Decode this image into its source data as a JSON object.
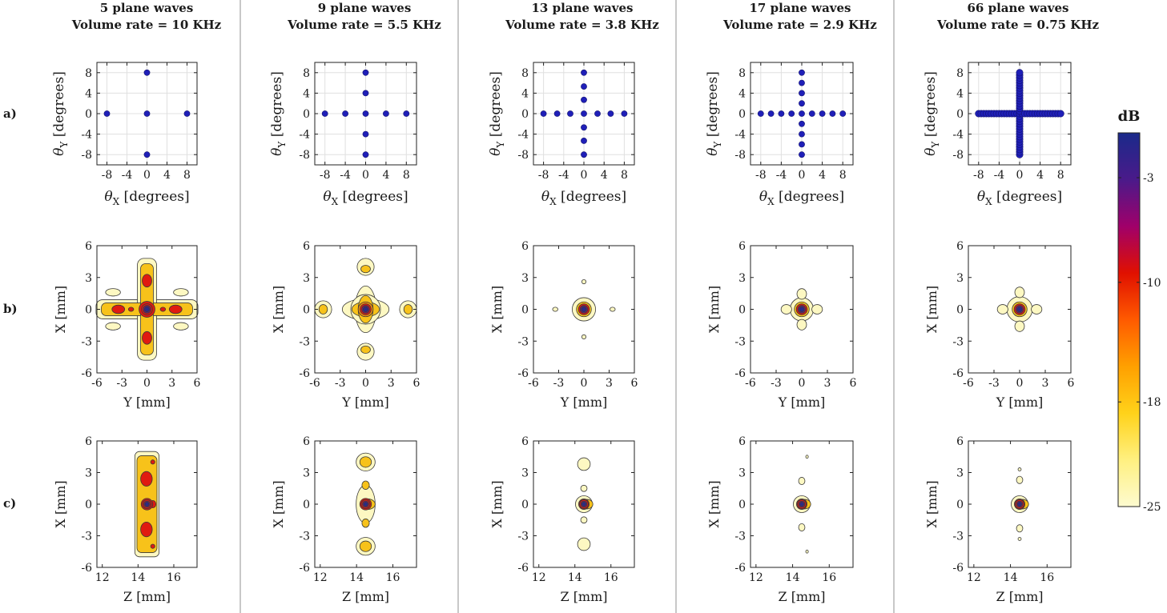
{
  "columns": [
    {
      "title_line1": "5 plane waves",
      "title_line2": "Volume rate = 10 KHz"
    },
    {
      "title_line1": "9 plane waves",
      "title_line2": "Volume rate = 5.5 KHz"
    },
    {
      "title_line1": "13 plane waves",
      "title_line2": "Volume rate = 3.8 KHz"
    },
    {
      "title_line1": "17 plane waves",
      "title_line2": "Volume rate = 2.9 KHz"
    },
    {
      "title_line1": "66 plane waves",
      "title_line2": "Volume rate = 0.75 KHz"
    }
  ],
  "row_labels": [
    "a)",
    "b)",
    "c)"
  ],
  "row_a": {
    "xlabel_sym": "θ",
    "xlabel_sub": "X",
    "xlabel_unit": " [degrees]",
    "ylabel_sym": "θ",
    "ylabel_sub": "Y",
    "ylabel_unit": " [degrees]",
    "ticks": [
      "-8",
      "-4",
      "0",
      "4",
      "8"
    ],
    "x_ticks": [
      -8,
      -4,
      0,
      4,
      8
    ],
    "y_ticks": [
      8,
      4,
      0,
      -4,
      -8
    ],
    "range": [
      -10,
      10
    ],
    "grid": true,
    "marker_color": "#1f1fb8",
    "angles_per_column": [
      [
        -8,
        0,
        8
      ],
      [
        -8,
        -4,
        0,
        4,
        8
      ],
      [
        -8,
        -5.3,
        -2.7,
        0,
        2.7,
        5.3,
        8
      ],
      [
        -8,
        -6,
        -4,
        -2,
        0,
        2,
        4,
        6,
        8
      ],
      [
        -8,
        -7.5,
        -7,
        -6.5,
        -6,
        -5.5,
        -5,
        -4.5,
        -4,
        -3.5,
        -3,
        -2.5,
        -2,
        -1.5,
        -1,
        -0.5,
        0,
        0.5,
        1,
        1.5,
        2,
        2.5,
        3,
        3.5,
        4,
        4.5,
        5,
        5.5,
        6,
        6.5,
        7,
        7.5,
        8
      ]
    ]
  },
  "row_b": {
    "xlabel": "Y [mm]",
    "ylabel": "X [mm]",
    "x_ticks": [
      -6,
      -3,
      0,
      3,
      6
    ],
    "y_ticks": [
      6,
      3,
      0,
      -3,
      -6
    ],
    "x_tick_labels": [
      "-6",
      "-3",
      "0",
      "3",
      "6"
    ],
    "y_tick_labels": [
      "6",
      "3",
      "0",
      "-3",
      "-6"
    ],
    "xlim": [
      -6,
      6
    ],
    "ylim": [
      -6,
      6
    ]
  },
  "row_c": {
    "xlabel": "Z [mm]",
    "ylabel": "X [mm]",
    "x_ticks": [
      12,
      14,
      16
    ],
    "y_ticks": [
      6,
      3,
      0,
      -3,
      -6
    ],
    "x_tick_labels": [
      "12",
      "14",
      "16"
    ],
    "y_tick_labels": [
      "6",
      "3",
      "0",
      "-3",
      "-6"
    ],
    "xlim": [
      11.7,
      17.3
    ],
    "ylim": [
      -6,
      6
    ]
  },
  "colorbar": {
    "title": "dB",
    "tick_labels": [
      "-3",
      "-10",
      "-18",
      "-25"
    ],
    "tick_values": [
      -3,
      -10,
      -18,
      -25
    ],
    "range": [
      -25,
      0
    ],
    "colors": [
      "#fdfbd0",
      "#fff080",
      "#ffd21a",
      "#ffa000",
      "#ff5a00",
      "#e01000",
      "#a0006a",
      "#4a1a8a",
      "#1a2a8a"
    ]
  }
}
